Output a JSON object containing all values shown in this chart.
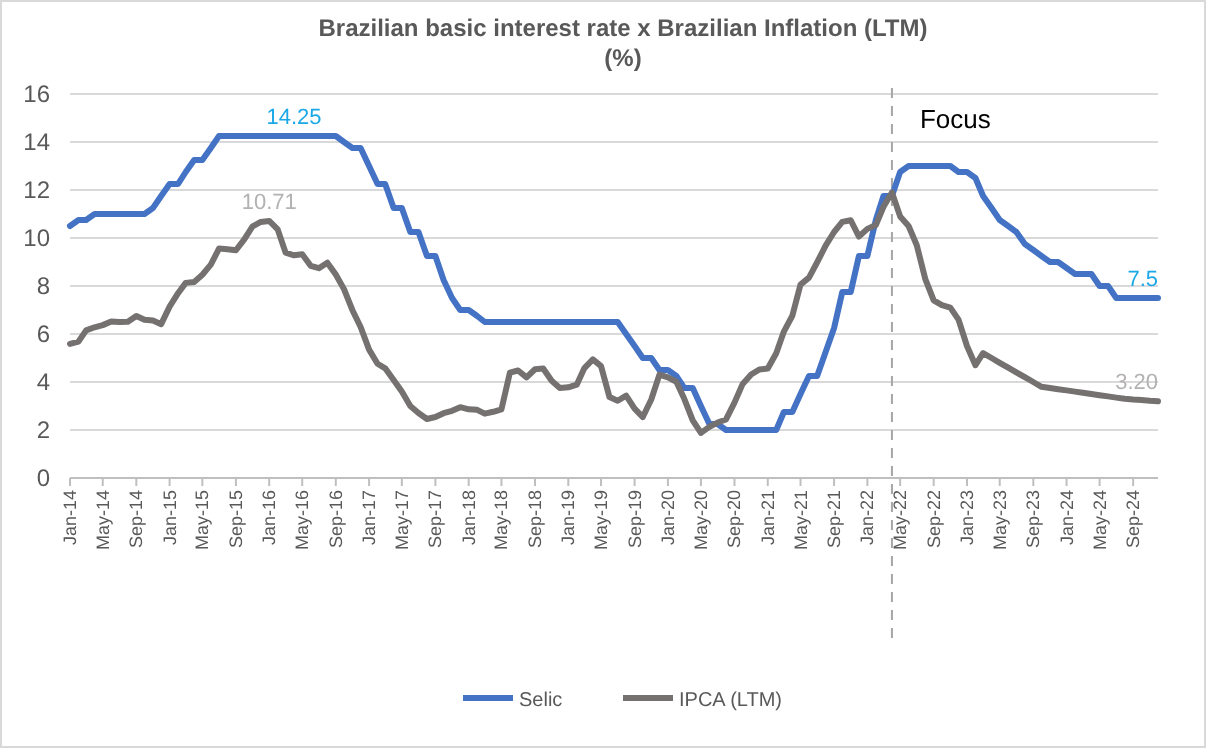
{
  "chart_data": {
    "type": "line",
    "title": "Brazilian basic interest rate x Brazilian Inflation (LTM)",
    "subtitle": "(%)",
    "x": [
      "2014-01",
      "2014-02",
      "2014-03",
      "2014-04",
      "2014-05",
      "2014-06",
      "2014-07",
      "2014-08",
      "2014-09",
      "2014-10",
      "2014-11",
      "2014-12",
      "2015-01",
      "2015-02",
      "2015-03",
      "2015-04",
      "2015-05",
      "2015-06",
      "2015-07",
      "2015-08",
      "2015-09",
      "2015-10",
      "2015-11",
      "2015-12",
      "2016-01",
      "2016-02",
      "2016-03",
      "2016-04",
      "2016-05",
      "2016-06",
      "2016-07",
      "2016-08",
      "2016-09",
      "2016-10",
      "2016-11",
      "2016-12",
      "2017-01",
      "2017-02",
      "2017-03",
      "2017-04",
      "2017-05",
      "2017-06",
      "2017-07",
      "2017-08",
      "2017-09",
      "2017-10",
      "2017-11",
      "2017-12",
      "2018-01",
      "2018-02",
      "2018-03",
      "2018-04",
      "2018-05",
      "2018-06",
      "2018-07",
      "2018-08",
      "2018-09",
      "2018-10",
      "2018-11",
      "2018-12",
      "2019-01",
      "2019-02",
      "2019-03",
      "2019-04",
      "2019-05",
      "2019-06",
      "2019-07",
      "2019-08",
      "2019-09",
      "2019-10",
      "2019-11",
      "2019-12",
      "2020-01",
      "2020-02",
      "2020-03",
      "2020-04",
      "2020-05",
      "2020-06",
      "2020-07",
      "2020-08",
      "2020-09",
      "2020-10",
      "2020-11",
      "2020-12",
      "2021-01",
      "2021-02",
      "2021-03",
      "2021-04",
      "2021-05",
      "2021-06",
      "2021-07",
      "2021-08",
      "2021-09",
      "2021-10",
      "2021-11",
      "2021-12",
      "2022-01",
      "2022-02",
      "2022-03",
      "2022-04",
      "2022-05",
      "2022-06",
      "2022-07",
      "2022-08",
      "2022-09",
      "2022-10",
      "2022-11",
      "2022-12",
      "2023-01",
      "2023-02",
      "2023-03",
      "2023-04",
      "2023-05",
      "2023-06",
      "2023-07",
      "2023-08",
      "2023-09",
      "2023-10",
      "2023-11",
      "2023-12",
      "2024-01",
      "2024-02",
      "2024-03",
      "2024-04",
      "2024-05",
      "2024-06",
      "2024-07",
      "2024-08",
      "2024-09",
      "2024-10",
      "2024-11",
      "2024-12"
    ],
    "series": [
      {
        "name": "Selic",
        "color": "#4472c4",
        "values": [
          10.5,
          10.75,
          10.75,
          11,
          11,
          11,
          11,
          11,
          11,
          11,
          11.25,
          11.75,
          12.25,
          12.25,
          12.75,
          13.25,
          13.25,
          13.75,
          14.25,
          14.25,
          14.25,
          14.25,
          14.25,
          14.25,
          14.25,
          14.25,
          14.25,
          14.25,
          14.25,
          14.25,
          14.25,
          14.25,
          14.25,
          14,
          13.75,
          13.75,
          13,
          12.25,
          12.25,
          11.25,
          11.25,
          10.25,
          10.25,
          9.25,
          9.25,
          8.25,
          7.5,
          7,
          7,
          6.75,
          6.5,
          6.5,
          6.5,
          6.5,
          6.5,
          6.5,
          6.5,
          6.5,
          6.5,
          6.5,
          6.5,
          6.5,
          6.5,
          6.5,
          6.5,
          6.5,
          6.5,
          6,
          5.5,
          5,
          5,
          4.5,
          4.5,
          4.25,
          3.75,
          3.75,
          3,
          2.25,
          2.25,
          2,
          2,
          2,
          2,
          2,
          2,
          2,
          2.75,
          2.75,
          3.5,
          4.25,
          4.25,
          5.25,
          6.25,
          7.75,
          7.75,
          9.25,
          9.25,
          10.75,
          11.75,
          11.75,
          12.75,
          13,
          13,
          13,
          13,
          13,
          13,
          12.75,
          12.75,
          12.5,
          11.75,
          11.25,
          10.75,
          10.5,
          10.25,
          9.75,
          9.5,
          9.25,
          9,
          9,
          8.75,
          8.5,
          8.5,
          8.5,
          8,
          8,
          7.5,
          7.5,
          7.5,
          7.5,
          7.5,
          7.5
        ],
        "value_labels": [
          null,
          null,
          null,
          null,
          null,
          null,
          null,
          null,
          null,
          null,
          null,
          null,
          null,
          null,
          null,
          null,
          null,
          null,
          null,
          null,
          null,
          null,
          null,
          null,
          null,
          null,
          null,
          "14.25",
          null,
          null,
          null,
          null,
          null,
          null,
          null,
          null,
          null,
          null,
          null,
          null,
          null,
          null,
          null,
          null,
          null,
          null,
          null,
          null,
          null,
          null,
          null,
          null,
          null,
          null,
          null,
          null,
          null,
          null,
          null,
          null,
          null,
          null,
          null,
          null,
          null,
          null,
          null,
          null,
          null,
          null,
          null,
          null,
          null,
          null,
          null,
          null,
          null,
          null,
          null,
          null,
          null,
          null,
          null,
          null,
          null,
          null,
          null,
          null,
          null,
          null,
          null,
          null,
          null,
          null,
          null,
          null,
          null,
          null,
          null,
          null,
          null,
          null,
          null,
          null,
          null,
          null,
          null,
          null,
          null,
          null,
          null,
          null,
          null,
          null,
          null,
          null,
          null,
          null,
          null,
          null,
          null,
          null,
          null,
          null,
          null,
          null,
          null,
          null,
          null,
          null,
          null,
          "7.5"
        ]
      },
      {
        "name": "IPCA (LTM)",
        "color": "#767171",
        "values": [
          5.59,
          5.68,
          6.15,
          6.28,
          6.37,
          6.52,
          6.5,
          6.51,
          6.75,
          6.59,
          6.56,
          6.41,
          7.14,
          7.7,
          8.13,
          8.17,
          8.47,
          8.89,
          9.56,
          9.53,
          9.49,
          9.93,
          10.48,
          10.67,
          10.71,
          10.36,
          9.39,
          9.28,
          9.32,
          8.84,
          8.74,
          8.97,
          8.48,
          7.87,
          6.99,
          6.29,
          5.35,
          4.76,
          4.57,
          4.08,
          3.6,
          3,
          2.71,
          2.46,
          2.54,
          2.7,
          2.8,
          2.95,
          2.86,
          2.84,
          2.68,
          2.76,
          2.86,
          4.39,
          4.48,
          4.19,
          4.53,
          4.56,
          4.05,
          3.75,
          3.78,
          3.89,
          4.58,
          4.94,
          4.66,
          3.37,
          3.22,
          3.43,
          2.89,
          2.54,
          3.27,
          4.31,
          4.19,
          4.01,
          3.3,
          2.4,
          1.88,
          2.13,
          2.31,
          2.44,
          3.14,
          3.92,
          4.31,
          4.52,
          4.56,
          5.2,
          6.1,
          6.76,
          8.06,
          8.35,
          8.99,
          9.68,
          10.25,
          10.67,
          10.74,
          10.06,
          10.38,
          10.54,
          11.3,
          11.9,
          10.9,
          10.5,
          9.7,
          8.3,
          7.4,
          7.2,
          7.1,
          6.6,
          5.5,
          4.7,
          5.2,
          5,
          4.8,
          4.6,
          4.4,
          4.2,
          4,
          3.8,
          3.75,
          3.7,
          3.65,
          3.6,
          3.55,
          3.5,
          3.45,
          3.4,
          3.35,
          3.3,
          3.27,
          3.25,
          3.22,
          3.2
        ],
        "value_labels": [
          null,
          null,
          null,
          null,
          null,
          null,
          null,
          null,
          null,
          null,
          null,
          null,
          null,
          null,
          null,
          null,
          null,
          null,
          null,
          null,
          null,
          null,
          null,
          null,
          "10.71",
          null,
          null,
          null,
          null,
          null,
          null,
          null,
          null,
          null,
          null,
          null,
          null,
          null,
          null,
          null,
          null,
          null,
          null,
          null,
          null,
          null,
          null,
          null,
          null,
          null,
          null,
          null,
          null,
          null,
          null,
          null,
          null,
          null,
          null,
          null,
          null,
          null,
          null,
          null,
          null,
          null,
          null,
          null,
          null,
          null,
          null,
          null,
          null,
          null,
          null,
          null,
          null,
          null,
          null,
          null,
          null,
          null,
          null,
          null,
          null,
          null,
          null,
          null,
          null,
          null,
          null,
          null,
          null,
          null,
          null,
          null,
          null,
          null,
          null,
          null,
          null,
          null,
          null,
          null,
          null,
          null,
          null,
          null,
          null,
          null,
          null,
          null,
          null,
          null,
          null,
          null,
          null,
          null,
          null,
          null,
          null,
          null,
          null,
          null,
          null,
          null,
          null,
          null,
          null,
          null,
          null,
          "3.20"
        ]
      }
    ],
    "xlim": [
      "2014-01",
      "2024-12"
    ],
    "xticks": [
      {
        "value": "2014-01",
        "label": "Jan-14"
      },
      {
        "value": "2014-05",
        "label": "May-14"
      },
      {
        "value": "2014-09",
        "label": "Sep-14"
      },
      {
        "value": "2015-01",
        "label": "Jan-15"
      },
      {
        "value": "2015-05",
        "label": "May-15"
      },
      {
        "value": "2015-09",
        "label": "Sep-15"
      },
      {
        "value": "2016-01",
        "label": "Jan-16"
      },
      {
        "value": "2016-05",
        "label": "May-16"
      },
      {
        "value": "2016-09",
        "label": "Sep-16"
      },
      {
        "value": "2017-01",
        "label": "Jan-17"
      },
      {
        "value": "2017-05",
        "label": "May-17"
      },
      {
        "value": "2017-09",
        "label": "Sep-17"
      },
      {
        "value": "2018-01",
        "label": "Jan-18"
      },
      {
        "value": "2018-05",
        "label": "May-18"
      },
      {
        "value": "2018-09",
        "label": "Sep-18"
      },
      {
        "value": "2019-01",
        "label": "Jan-19"
      },
      {
        "value": "2019-05",
        "label": "May-19"
      },
      {
        "value": "2019-09",
        "label": "Sep-19"
      },
      {
        "value": "2020-01",
        "label": "Jan-20"
      },
      {
        "value": "2020-05",
        "label": "May-20"
      },
      {
        "value": "2020-09",
        "label": "Sep-20"
      },
      {
        "value": "2021-01",
        "label": "Jan-21"
      },
      {
        "value": "2021-05",
        "label": "May-21"
      },
      {
        "value": "2021-09",
        "label": "Sep-21"
      },
      {
        "value": "2022-01",
        "label": "Jan-22"
      },
      {
        "value": "2022-05",
        "label": "May-22"
      },
      {
        "value": "2022-09",
        "label": "Sep-22"
      },
      {
        "value": "2023-01",
        "label": "Jan-23"
      },
      {
        "value": "2023-05",
        "label": "May-23"
      },
      {
        "value": "2023-09",
        "label": "Sep-23"
      },
      {
        "value": "2024-01",
        "label": "Jan-24"
      },
      {
        "value": "2024-05",
        "label": "May-24"
      },
      {
        "value": "2024-09",
        "label": "Sep-24"
      }
    ],
    "ylim": [
      0,
      16
    ],
    "yticks": [
      0,
      2,
      4,
      6,
      8,
      10,
      12,
      14,
      16
    ],
    "grid": "y",
    "legend": "bottom",
    "marker": "none",
    "line_style": "solid",
    "ref_lines": [
      {
        "axis": "x",
        "value": "2022-04",
        "label": "Focus",
        "color": "#a6a6a6",
        "line_style": "dashed"
      }
    ]
  }
}
